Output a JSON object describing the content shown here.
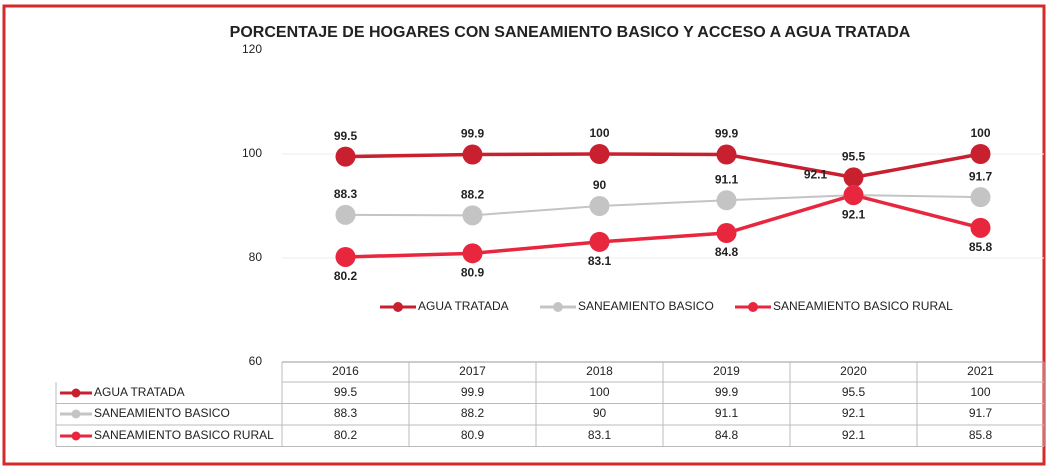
{
  "chart_data": {
    "type": "line",
    "title": "PORCENTAJE DE HOGARES CON SANEAMIENTO BASICO Y ACCESO A AGUA TRATADA",
    "categories": [
      "2016",
      "2017",
      "2018",
      "2019",
      "2020",
      "2021"
    ],
    "series": [
      {
        "name": "AGUA TRATADA",
        "color": "#c8202f",
        "values": [
          99.5,
          99.9,
          100,
          99.9,
          95.5,
          100
        ]
      },
      {
        "name": "SANEAMIENTO BASICO",
        "color": "#c4c4c4",
        "values": [
          88.3,
          88.2,
          90,
          91.1,
          92.1,
          91.7
        ]
      },
      {
        "name": "SANEAMIENTO BASICO RURAL",
        "color": "#e8263e",
        "values": [
          80.2,
          80.9,
          83.1,
          84.8,
          92.1,
          85.8
        ]
      }
    ],
    "ylim": [
      60,
      120
    ],
    "yticks": [
      60,
      80,
      100,
      120
    ],
    "grid": true,
    "legend": "center"
  }
}
